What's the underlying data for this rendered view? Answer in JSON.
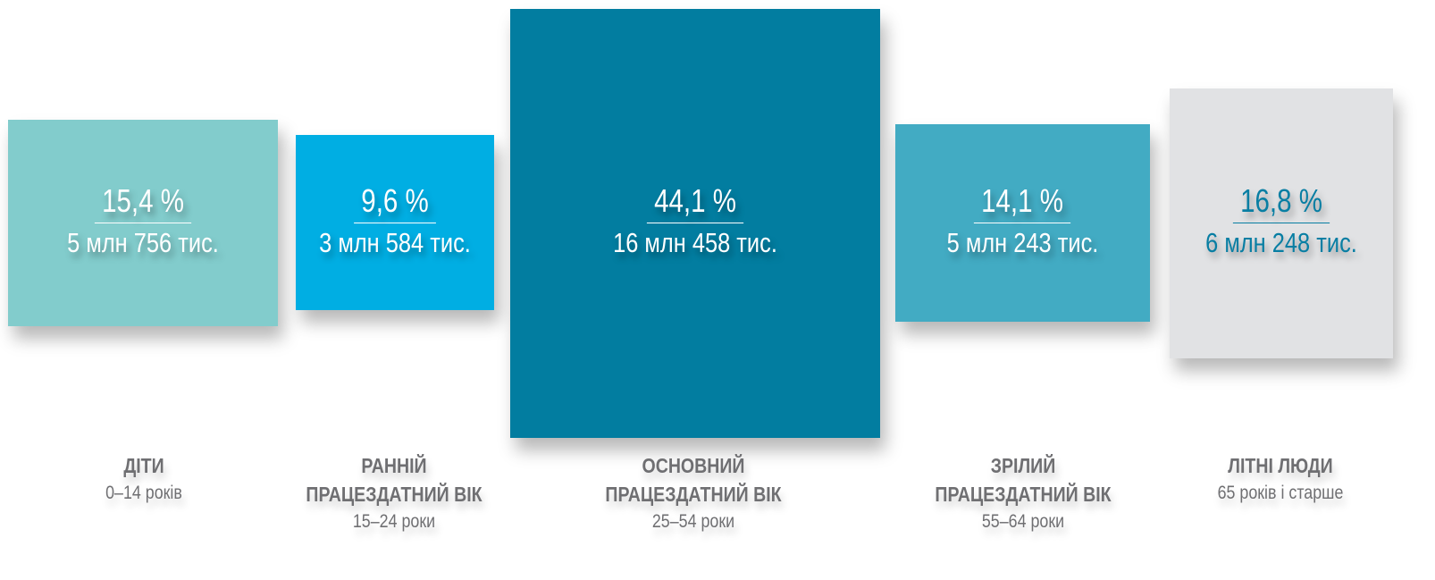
{
  "chart_data": {
    "type": "proportional-area",
    "groups": [
      {
        "name": "ДІТИ",
        "age": "0–14 років",
        "percent_label": "15,4 %",
        "percent": 15.4,
        "count_label": "5 млн 756 тис.",
        "color": "#82cccc",
        "text_color": "#ffffff"
      },
      {
        "name": "РАННІЙ ПРАЦЕЗДАТНИЙ ВІК",
        "age": "15–24 роки",
        "percent_label": "9,6 %",
        "percent": 9.6,
        "count_label": "3 млн 584 тис.",
        "color": "#00aee3",
        "text_color": "#ffffff"
      },
      {
        "name": "ОСНОВНИЙ ПРАЦЕЗДАТНИЙ ВІК",
        "age": "25–54 роки",
        "percent_label": "44,1 %",
        "percent": 44.1,
        "count_label": "16 млн 458 тис.",
        "color": "#027da0",
        "text_color": "#ffffff"
      },
      {
        "name": "ЗРІЛИЙ ПРАЦЕЗДАТНИЙ ВІК",
        "age": "55–64 роки",
        "percent_label": "14,1 %",
        "percent": 14.1,
        "count_label": "5 млн 243 тис.",
        "color": "#42abc3",
        "text_color": "#ffffff"
      },
      {
        "name": "ЛІТНІ ЛЮДИ",
        "age": "65 років і старше",
        "percent_label": "16,8 %",
        "percent": 16.8,
        "count_label": "6 млн 248 тис.",
        "color": "#e1e2e4",
        "text_color": "#087ea3"
      }
    ]
  },
  "labels": [
    {
      "line1": "ДІТИ",
      "line2": ""
    },
    {
      "line1": "РАННІЙ",
      "line2": "ПРАЦЕЗДАТНИЙ ВІК"
    },
    {
      "line1": "ОСНОВНИЙ",
      "line2": "ПРАЦЕЗДАТНИЙ ВІК"
    },
    {
      "line1": "ЗРІЛИЙ",
      "line2": "ПРАЦЕЗДАТНИЙ ВІК"
    },
    {
      "line1": "ЛІТНІ ЛЮДИ",
      "line2": ""
    }
  ]
}
